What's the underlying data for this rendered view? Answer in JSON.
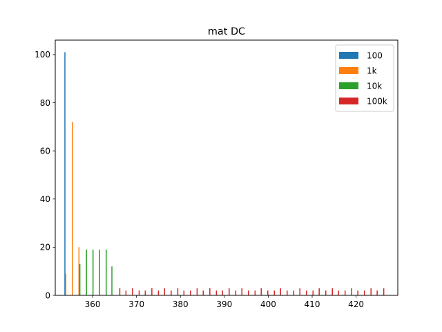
{
  "chart_data": {
    "type": "bar",
    "title": "mat DC",
    "xlabel": "",
    "ylabel": "",
    "xlim": [
      351.5,
      429.5
    ],
    "ylim": [
      0,
      106
    ],
    "xticks": [
      360,
      370,
      380,
      390,
      400,
      410,
      420
    ],
    "yticks": [
      0,
      20,
      40,
      60,
      80,
      100
    ],
    "bar_width": 0.24,
    "legend_position": "top-right",
    "series": [
      {
        "name": "100",
        "color": "#1f77b4",
        "points": [
          {
            "x": 353.7,
            "y": 101
          }
        ]
      },
      {
        "name": "1k",
        "color": "#ff7f0e",
        "points": [
          {
            "x": 353.9,
            "y": 9
          },
          {
            "x": 355.4,
            "y": 72
          },
          {
            "x": 356.9,
            "y": 20
          }
        ]
      },
      {
        "name": "10k",
        "color": "#2ca02c",
        "points": [
          {
            "x": 357.1,
            "y": 13
          },
          {
            "x": 358.6,
            "y": 19
          },
          {
            "x": 360.1,
            "y": 19
          },
          {
            "x": 361.6,
            "y": 19
          },
          {
            "x": 363.1,
            "y": 19
          },
          {
            "x": 364.4,
            "y": 12
          }
        ]
      },
      {
        "name": "100k",
        "color": "#d62728",
        "points": [
          {
            "x": 366.2,
            "y": 3
          },
          {
            "x": 367.6,
            "y": 2
          },
          {
            "x": 369.1,
            "y": 3
          },
          {
            "x": 370.6,
            "y": 2
          },
          {
            "x": 372.0,
            "y": 2
          },
          {
            "x": 373.5,
            "y": 3
          },
          {
            "x": 375.0,
            "y": 2
          },
          {
            "x": 376.4,
            "y": 3
          },
          {
            "x": 377.9,
            "y": 2
          },
          {
            "x": 379.4,
            "y": 3
          },
          {
            "x": 380.8,
            "y": 2
          },
          {
            "x": 382.3,
            "y": 2
          },
          {
            "x": 383.8,
            "y": 3
          },
          {
            "x": 385.2,
            "y": 2
          },
          {
            "x": 386.7,
            "y": 3
          },
          {
            "x": 388.2,
            "y": 2
          },
          {
            "x": 389.6,
            "y": 2
          },
          {
            "x": 391.1,
            "y": 3
          },
          {
            "x": 392.6,
            "y": 2
          },
          {
            "x": 394.0,
            "y": 3
          },
          {
            "x": 395.5,
            "y": 2
          },
          {
            "x": 397.0,
            "y": 2
          },
          {
            "x": 398.4,
            "y": 3
          },
          {
            "x": 399.9,
            "y": 2
          },
          {
            "x": 401.4,
            "y": 2
          },
          {
            "x": 402.8,
            "y": 3
          },
          {
            "x": 404.3,
            "y": 2
          },
          {
            "x": 405.8,
            "y": 2
          },
          {
            "x": 407.2,
            "y": 3
          },
          {
            "x": 408.7,
            "y": 2
          },
          {
            "x": 410.2,
            "y": 2
          },
          {
            "x": 411.6,
            "y": 3
          },
          {
            "x": 413.1,
            "y": 2
          },
          {
            "x": 414.6,
            "y": 3
          },
          {
            "x": 416.0,
            "y": 2
          },
          {
            "x": 417.5,
            "y": 2
          },
          {
            "x": 419.0,
            "y": 3
          },
          {
            "x": 420.4,
            "y": 2
          },
          {
            "x": 421.9,
            "y": 2
          },
          {
            "x": 423.4,
            "y": 3
          },
          {
            "x": 424.8,
            "y": 2
          },
          {
            "x": 426.3,
            "y": 3
          }
        ]
      }
    ]
  }
}
